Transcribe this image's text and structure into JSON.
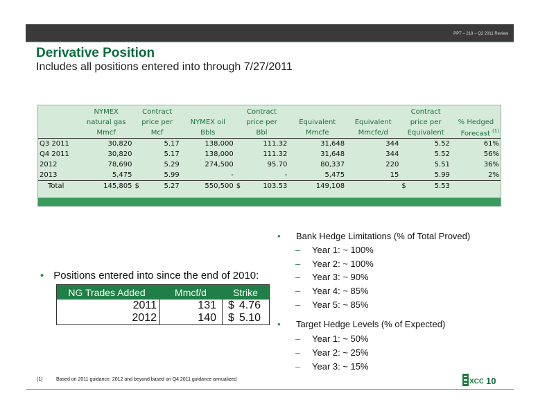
{
  "header": {
    "slide_ref": "PPT – 218 – Q2 2011 Review"
  },
  "title": "Derivative Position",
  "subtitle": "Includes all positions entered into through 7/27/2011",
  "table": {
    "header1": [
      "",
      "NYMEX",
      "Contract",
      "",
      "Contract",
      "",
      "",
      "Contract",
      ""
    ],
    "header2": [
      "",
      "natural gas",
      "price per",
      "NYMEX oil",
      "price per",
      "Equivalent",
      "Equivalent",
      "price per",
      "% Hedged"
    ],
    "header3": [
      "",
      "Mmcf",
      "Mcf",
      "Bbls",
      "Bbl",
      "Mmcfe",
      "Mmcfe/d",
      "Equivalent",
      "Forecast"
    ],
    "footnote_mark": "(1)",
    "rows": [
      [
        "Q3 2011",
        "30,820",
        "5.17",
        "138,000",
        "111.32",
        "31,648",
        "344",
        "5.52",
        "61%"
      ],
      [
        "Q4 2011",
        "30,820",
        "5.17",
        "138,000",
        "111.32",
        "31,648",
        "344",
        "5.52",
        "56%"
      ],
      [
        "2012",
        "78,690",
        "5.29",
        "274,500",
        "95.70",
        "80,337",
        "220",
        "5.51",
        "36%"
      ],
      [
        "2013",
        "5,475",
        "5.99",
        "-",
        "-",
        "5,475",
        "15",
        "5.99",
        "2%"
      ]
    ],
    "total": {
      "label": "Total",
      "gas": "145,805",
      "gas_price_dollar": "$",
      "gas_price": "5.27",
      "oil": "550,500",
      "oil_price_dollar": "$",
      "oil_price": "103.53",
      "equiv": "149,108",
      "equiv_d": "",
      "equiv_price_dollar": "$",
      "equiv_price": "5.53",
      "hedged": ""
    }
  },
  "left_bullet": "Positions entered into since the end of 2010:",
  "ng_trades": {
    "headers": [
      "NG Trades Added",
      "Mmcf/d",
      "Strike"
    ],
    "rows": [
      {
        "year": "2011",
        "mmcfd": "131",
        "dollar": "$",
        "strike": "4.76"
      },
      {
        "year": "2012",
        "mmcfd": "140",
        "dollar": "$",
        "strike": "5.10"
      }
    ]
  },
  "right_bullets": [
    {
      "text": "Bank Hedge Limitations (% of Total Proved)",
      "subs": [
        "Year 1:  ~ 100%",
        "Year 2:  ~ 100%",
        "Year 3:  ~ 90%",
        "Year 4:  ~ 85%",
        "Year 5:  ~ 85%"
      ]
    },
    {
      "text": "Target Hedge Levels (% of Expected)",
      "subs": [
        "Year 1:  ~ 50%",
        "Year 2:  ~ 25%",
        "Year 3:  ~ 15%"
      ]
    }
  ],
  "footnote": {
    "mark": "(1)",
    "text": "Based on 2011 guidance. 2012 and beyond based on Q4 2011 guidance annualized"
  },
  "logo_text": "XCO",
  "page_number": "10",
  "colors": {
    "accent_green": "#0a6b3c",
    "table_bg": "#d5ead8",
    "header_bar": "#3a3a3a"
  }
}
